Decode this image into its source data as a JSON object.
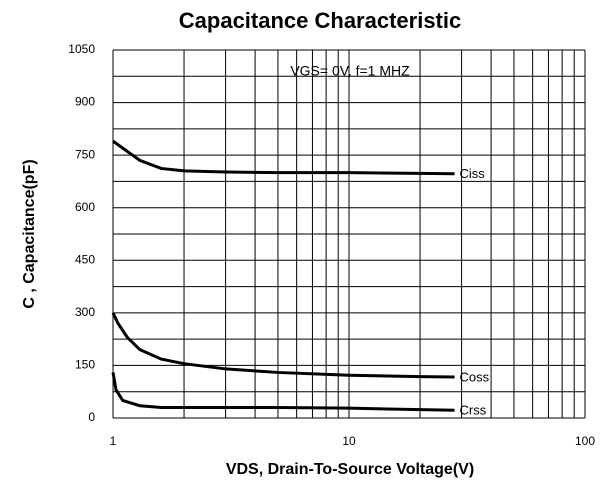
{
  "chart_data": {
    "type": "line",
    "title": "Capacitance Characteristic",
    "annotation": "VGS= 0V, f=1 MHZ",
    "xlabel": "VDS, Drain-To-Source Voltage(V)",
    "ylabel": "C , Capacitance(pF)",
    "log_x": true,
    "grid": true,
    "xlim": [
      1,
      100
    ],
    "xticks": [
      1,
      10,
      100
    ],
    "ylim": [
      0,
      1050
    ],
    "yticks": [
      0,
      150,
      300,
      450,
      600,
      750,
      900,
      1050
    ],
    "yminor": [
      75,
      225,
      375,
      525,
      675,
      825,
      975
    ],
    "series": [
      {
        "name": "Ciss",
        "color": "#000000",
        "x": [
          1,
          1.1,
          1.3,
          1.6,
          2,
          3,
          5,
          10,
          20,
          28
        ],
        "values": [
          790,
          770,
          735,
          712,
          705,
          702,
          700,
          700,
          698,
          697
        ]
      },
      {
        "name": "Coss",
        "color": "#000000",
        "x": [
          1,
          1.05,
          1.15,
          1.3,
          1.6,
          2,
          3,
          5,
          10,
          20,
          28
        ],
        "values": [
          300,
          270,
          230,
          195,
          168,
          155,
          140,
          130,
          122,
          118,
          117
        ]
      },
      {
        "name": "Crss",
        "color": "#000000",
        "x": [
          1,
          1.03,
          1.1,
          1.3,
          1.6,
          2,
          5,
          10,
          20,
          28
        ],
        "values": [
          130,
          80,
          50,
          35,
          30,
          30,
          30,
          28,
          24,
          22
        ]
      }
    ]
  }
}
